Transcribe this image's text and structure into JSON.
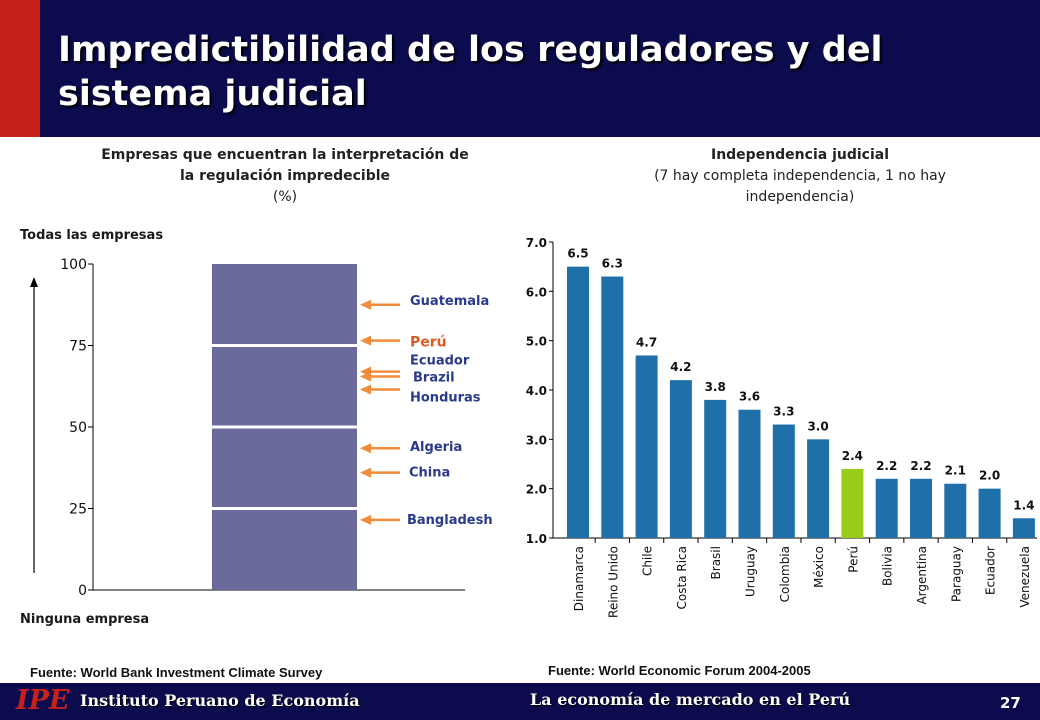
{
  "title": "Impredictibilidad de los reguladores y del sistema judicial",
  "left_panel": {
    "heading_line1": "Empresas que encuentran la interpretación de",
    "heading_line2": "la regulación impredecible",
    "heading_unit": "(%)",
    "top_label": "Todas las empresas",
    "bottom_label": "Ninguna empresa",
    "source": "Fuente: World Bank Investment Climate Survey"
  },
  "right_panel": {
    "heading_line1": "Independencia judicial",
    "heading_line2": "(7 hay completa independencia, 1 no hay",
    "heading_line3": "independencia)",
    "source": "Fuente: World Economic Forum 2004-2005"
  },
  "footer": {
    "logo": "IPE",
    "institution": "Instituto Peruano de Economía",
    "tagline": "La economía de mercado en el Perú",
    "page_number": "27"
  },
  "colors": {
    "header": "#0b0b4e",
    "accent": "#c8201b",
    "bar": "#6a6a9c",
    "arrow": "#f08c3a",
    "label": "#2a3a8c",
    "highlight": "#e05a20",
    "series": "#1f6fa8",
    "peru": "#9acd1a"
  },
  "chart_data": [
    {
      "type": "bar",
      "yticks": [
        "0",
        "25",
        "50",
        "75",
        "100"
      ],
      "ylim": [
        0,
        100
      ],
      "values": [
        100
      ],
      "segment_breaks": [
        25,
        50,
        75
      ],
      "annotations": [
        {
          "label": "Guatemala",
          "value": 87.5
        },
        {
          "label": "Perú",
          "value": 76.5,
          "highlight": true
        },
        {
          "label": "Ecuador",
          "value": 67
        },
        {
          "label": "Brazil",
          "value": 65.5
        },
        {
          "label": "Honduras",
          "value": 61.5
        },
        {
          "label": "Algeria",
          "value": 43.5
        },
        {
          "label": "China",
          "value": 36
        },
        {
          "label": "Bangladesh",
          "value": 21.5
        }
      ]
    },
    {
      "type": "bar",
      "ylim": [
        1,
        7
      ],
      "yticks": [
        "1.0",
        "2.0",
        "3.0",
        "4.0",
        "5.0",
        "6.0",
        "7.0"
      ],
      "categories": [
        "Dinamarca",
        "Reino Unido",
        "Chile",
        "Costa Rica",
        "Brasil",
        "Uruguay",
        "Colombia",
        "México",
        "Perú",
        "Bolivia",
        "Argentina",
        "Paraguay",
        "Ecuador",
        "Venezuela"
      ],
      "values": [
        6.5,
        6.3,
        4.7,
        4.2,
        3.8,
        3.6,
        3.3,
        3.0,
        2.4,
        2.2,
        2.2,
        2.1,
        2.0,
        1.4
      ],
      "value_labels": [
        "6.5",
        "6.3",
        "4.7",
        "4.2",
        "3.8",
        "3.6",
        "3.3",
        "3.0",
        "2.4",
        "2.2",
        "2.2",
        "2.1",
        "2.0",
        "1.4"
      ],
      "highlight_category": "Perú"
    }
  ]
}
